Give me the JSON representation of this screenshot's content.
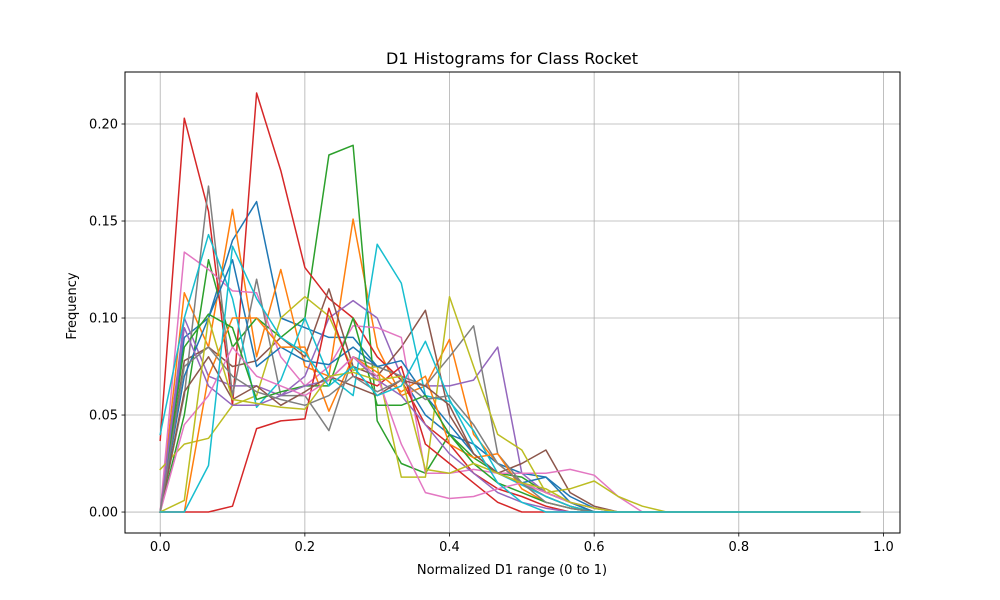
{
  "chart_data": {
    "type": "line",
    "title": "D1 Histograms for Class Rocket",
    "xlabel": "Normalized D1 range (0 to 1)",
    "ylabel": "Frequency",
    "xlim": [
      -0.0487,
      1.0229
    ],
    "ylim": [
      -0.0108,
      0.2268
    ],
    "xticks": [
      0.0,
      0.2,
      0.4,
      0.6,
      0.8,
      1.0
    ],
    "xtick_labels": [
      "0.0",
      "0.2",
      "0.4",
      "0.6",
      "0.8",
      "1.0"
    ],
    "yticks": [
      0.0,
      0.05,
      0.1,
      0.15,
      0.2
    ],
    "ytick_labels": [
      "0.00",
      "0.05",
      "0.10",
      "0.15",
      "0.20"
    ],
    "grid": true,
    "legend": false,
    "x": [
      0.0,
      0.0333,
      0.0667,
      0.1,
      0.1333,
      0.1667,
      0.2,
      0.2333,
      0.2667,
      0.3,
      0.3333,
      0.3667,
      0.4,
      0.4333,
      0.4667,
      0.5,
      0.5333,
      0.5667,
      0.6,
      0.6333,
      0.6667,
      0.7,
      0.7333,
      0.7667,
      0.8,
      0.8333,
      0.8667,
      0.9,
      0.9333,
      0.9667
    ],
    "series": [
      {
        "color": "#1f77b4",
        "values": [
          0.0,
          0.09,
          0.1,
          0.14,
          0.16,
          0.1,
          0.095,
          0.09,
          0.09,
          0.075,
          0.07,
          0.05,
          0.04,
          0.035,
          0.025,
          0.02,
          0.018,
          0.008,
          0.002,
          0.0,
          0.0,
          0.0,
          0.0,
          0.0,
          0.0,
          0.0,
          0.0,
          0.0,
          0.0,
          0.0
        ]
      },
      {
        "color": "#ff7f0e",
        "values": [
          0.0,
          0.113,
          0.085,
          0.156,
          0.08,
          0.125,
          0.075,
          0.07,
          0.151,
          0.085,
          0.06,
          0.065,
          0.089,
          0.04,
          0.025,
          0.015,
          0.008,
          0.003,
          0.0,
          0.0,
          0.0,
          0.0,
          0.0,
          0.0,
          0.0,
          0.0,
          0.0,
          0.0,
          0.0,
          0.0
        ]
      },
      {
        "color": "#2ca02c",
        "values": [
          0.0,
          0.05,
          0.13,
          0.085,
          0.1,
          0.09,
          0.1,
          0.184,
          0.189,
          0.047,
          0.025,
          0.02,
          0.04,
          0.028,
          0.02,
          0.018,
          0.01,
          0.005,
          0.0,
          0.0,
          0.0,
          0.0,
          0.0,
          0.0,
          0.0,
          0.0,
          0.0,
          0.0,
          0.0,
          0.0
        ]
      },
      {
        "color": "#d62728",
        "values": [
          0.037,
          0.203,
          0.155,
          0.055,
          0.216,
          0.176,
          0.126,
          0.11,
          0.1,
          0.08,
          0.068,
          0.045,
          0.035,
          0.02,
          0.012,
          0.008,
          0.003,
          0.0,
          0.0,
          0.0,
          0.0,
          0.0,
          0.0,
          0.0,
          0.0,
          0.0,
          0.0,
          0.0,
          0.0,
          0.0
        ]
      },
      {
        "color": "#9467bd",
        "values": [
          0.0,
          0.1,
          0.07,
          0.065,
          0.065,
          0.06,
          0.07,
          0.1,
          0.109,
          0.1,
          0.07,
          0.065,
          0.065,
          0.068,
          0.085,
          0.02,
          0.01,
          0.005,
          0.0,
          0.0,
          0.0,
          0.0,
          0.0,
          0.0,
          0.0,
          0.0,
          0.0,
          0.0,
          0.0,
          0.0
        ]
      },
      {
        "color": "#8c564b",
        "values": [
          0.0,
          0.078,
          0.085,
          0.075,
          0.078,
          0.09,
          0.08,
          0.115,
          0.075,
          0.07,
          0.085,
          0.104,
          0.05,
          0.03,
          0.02,
          0.025,
          0.032,
          0.01,
          0.003,
          0.0,
          0.0,
          0.0,
          0.0,
          0.0,
          0.0,
          0.0,
          0.0,
          0.0,
          0.0,
          0.0
        ]
      },
      {
        "color": "#e377c2",
        "values": [
          0.0,
          0.134,
          0.125,
          0.114,
          0.113,
          0.08,
          0.065,
          0.075,
          0.096,
          0.095,
          0.09,
          0.02,
          0.02,
          0.022,
          0.02,
          0.02,
          0.02,
          0.022,
          0.019,
          0.008,
          0.0,
          0.0,
          0.0,
          0.0,
          0.0,
          0.0,
          0.0,
          0.0,
          0.0,
          0.0
        ]
      },
      {
        "color": "#7f7f7f",
        "values": [
          0.0,
          0.06,
          0.168,
          0.06,
          0.12,
          0.06,
          0.06,
          0.042,
          0.08,
          0.075,
          0.07,
          0.065,
          0.08,
          0.096,
          0.03,
          0.015,
          0.008,
          0.003,
          0.0,
          0.0,
          0.0,
          0.0,
          0.0,
          0.0,
          0.0,
          0.0,
          0.0,
          0.0,
          0.0,
          0.0
        ]
      },
      {
        "color": "#bcbd22",
        "values": [
          0.022,
          0.035,
          0.038,
          0.055,
          0.06,
          0.1,
          0.111,
          0.101,
          0.073,
          0.075,
          0.018,
          0.018,
          0.111,
          0.075,
          0.04,
          0.032,
          0.01,
          0.012,
          0.016,
          0.008,
          0.003,
          0.0,
          0.0,
          0.0,
          0.0,
          0.0,
          0.0,
          0.0,
          0.0,
          0.0
        ]
      },
      {
        "color": "#17becf",
        "values": [
          0.04,
          0.1,
          0.143,
          0.11,
          0.054,
          0.068,
          0.1,
          0.07,
          0.06,
          0.138,
          0.118,
          0.06,
          0.057,
          0.042,
          0.02,
          0.014,
          0.008,
          0.003,
          0.0,
          0.0,
          0.0,
          0.0,
          0.0,
          0.0,
          0.0,
          0.0,
          0.0,
          0.0,
          0.0,
          0.0
        ]
      },
      {
        "color": "#1f77b4",
        "values": [
          0.0,
          0.07,
          0.1,
          0.13,
          0.075,
          0.085,
          0.078,
          0.076,
          0.085,
          0.075,
          0.078,
          0.06,
          0.045,
          0.03,
          0.02,
          0.015,
          0.018,
          0.005,
          0.0,
          0.0,
          0.0,
          0.0,
          0.0,
          0.0,
          0.0,
          0.0,
          0.0,
          0.0,
          0.0,
          0.0
        ]
      },
      {
        "color": "#ff7f0e",
        "values": [
          0.0,
          0.0,
          0.07,
          0.1,
          0.1,
          0.085,
          0.085,
          0.052,
          0.08,
          0.072,
          0.062,
          0.07,
          0.035,
          0.028,
          0.03,
          0.012,
          0.005,
          0.002,
          0.0,
          0.0,
          0.0,
          0.0,
          0.0,
          0.0,
          0.0,
          0.0,
          0.0,
          0.0,
          0.0,
          0.0
        ]
      },
      {
        "color": "#2ca02c",
        "values": [
          0.0,
          0.085,
          0.102,
          0.095,
          0.058,
          0.062,
          0.065,
          0.065,
          0.1,
          0.055,
          0.055,
          0.06,
          0.04,
          0.025,
          0.015,
          0.01,
          0.005,
          0.002,
          0.0,
          0.0,
          0.0,
          0.0,
          0.0,
          0.0,
          0.0,
          0.0,
          0.0,
          0.0,
          0.0,
          0.0
        ]
      },
      {
        "color": "#d62728",
        "values": [
          0.0,
          0.0,
          0.0,
          0.003,
          0.043,
          0.047,
          0.048,
          0.105,
          0.07,
          0.065,
          0.075,
          0.035,
          0.025,
          0.015,
          0.005,
          0.0,
          0.0,
          0.0,
          0.0,
          0.0,
          0.0,
          0.0,
          0.0,
          0.0,
          0.0,
          0.0,
          0.0,
          0.0,
          0.0,
          0.0
        ]
      },
      {
        "color": "#9467bd",
        "values": [
          0.0,
          0.095,
          0.065,
          0.055,
          0.055,
          0.06,
          0.065,
          0.068,
          0.08,
          0.068,
          0.06,
          0.045,
          0.03,
          0.02,
          0.01,
          0.005,
          0.002,
          0.0,
          0.0,
          0.0,
          0.0,
          0.0,
          0.0,
          0.0,
          0.0,
          0.0,
          0.0,
          0.0,
          0.0,
          0.0
        ]
      },
      {
        "color": "#8c564b",
        "values": [
          0.0,
          0.062,
          0.08,
          0.058,
          0.065,
          0.055,
          0.062,
          0.07,
          0.065,
          0.06,
          0.068,
          0.065,
          0.055,
          0.03,
          0.02,
          0.015,
          0.01,
          0.005,
          0.002,
          0.0,
          0.0,
          0.0,
          0.0,
          0.0,
          0.0,
          0.0,
          0.0,
          0.0,
          0.0,
          0.0
        ]
      },
      {
        "color": "#e377c2",
        "values": [
          0.0,
          0.045,
          0.06,
          0.085,
          0.07,
          0.065,
          0.06,
          0.068,
          0.08,
          0.07,
          0.035,
          0.01,
          0.007,
          0.008,
          0.012,
          0.015,
          0.01,
          0.005,
          0.002,
          0.0,
          0.0,
          0.0,
          0.0,
          0.0,
          0.0,
          0.0,
          0.0,
          0.0,
          0.0,
          0.0
        ]
      },
      {
        "color": "#7f7f7f",
        "values": [
          0.0,
          0.075,
          0.085,
          0.07,
          0.062,
          0.058,
          0.055,
          0.06,
          0.07,
          0.062,
          0.068,
          0.058,
          0.06,
          0.045,
          0.025,
          0.015,
          0.005,
          0.002,
          0.0,
          0.0,
          0.0,
          0.0,
          0.0,
          0.0,
          0.0,
          0.0,
          0.0,
          0.0,
          0.0,
          0.0
        ]
      },
      {
        "color": "#bcbd22",
        "values": [
          0.0,
          0.006,
          0.1,
          0.058,
          0.056,
          0.054,
          0.053,
          0.07,
          0.072,
          0.068,
          0.07,
          0.022,
          0.02,
          0.025,
          0.02,
          0.015,
          0.012,
          0.005,
          0.002,
          0.0,
          0.0,
          0.0,
          0.0,
          0.0,
          0.0,
          0.0,
          0.0,
          0.0,
          0.0,
          0.0
        ]
      },
      {
        "color": "#17becf",
        "values": [
          0.0,
          0.0,
          0.024,
          0.137,
          0.11,
          0.09,
          0.082,
          0.065,
          0.075,
          0.06,
          0.065,
          0.088,
          0.058,
          0.035,
          0.015,
          0.005,
          0.0,
          0.0,
          0.0,
          0.0,
          0.0,
          0.0,
          0.0,
          0.0,
          0.0,
          0.0,
          0.0,
          0.0,
          0.0,
          0.0
        ]
      }
    ]
  }
}
